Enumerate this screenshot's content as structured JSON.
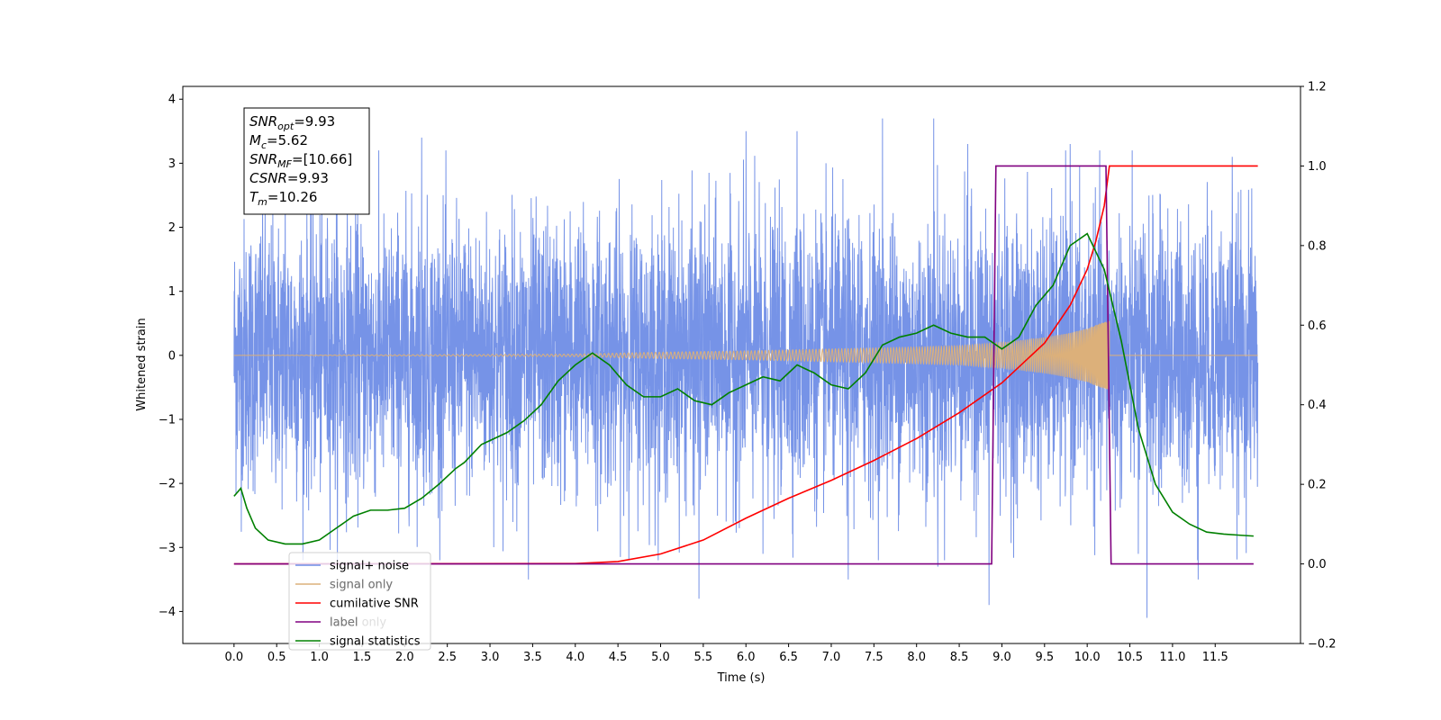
{
  "chart_data": {
    "type": "line",
    "xlabel": "Time (s)",
    "ylabel_left": "Whitened strain",
    "ylabel_right": "",
    "xlim": [
      -0.6,
      12.5
    ],
    "ylim_left": [
      -4.5,
      4.2
    ],
    "ylim_right": [
      -0.2,
      1.2
    ],
    "x_ticks": [
      "0.0",
      "0.5",
      "1.0",
      "1.5",
      "2.0",
      "2.5",
      "3.0",
      "3.5",
      "4.0",
      "4.5",
      "5.0",
      "5.5",
      "6.0",
      "6.5",
      "7.0",
      "7.5",
      "8.0",
      "8.5",
      "9.0",
      "9.5",
      "10.0",
      "10.5",
      "11.0",
      "11.5"
    ],
    "y_ticks_left": [
      "4",
      "3",
      "2",
      "1",
      "0",
      "−1",
      "−2",
      "−3",
      "−4"
    ],
    "y_ticks_right": [
      "1.2",
      "1.0",
      "0.8",
      "0.6",
      "0.4",
      "0.2",
      "0.0",
      "−0.2"
    ],
    "grid": false,
    "legend_position": "lower-left",
    "legend": [
      "signal+ noise",
      "signal only",
      "cumilative SNR",
      "label",
      "signal statistics"
    ],
    "overlapped_legend_text": [
      "signal only",
      "label only"
    ],
    "annotation_box": {
      "lines": [
        {
          "base": "SNR",
          "sub": "opt",
          "value": "=9.93"
        },
        {
          "base": "M",
          "sub": "c",
          "value": "=5.62"
        },
        {
          "base": "SNR",
          "sub": "MF",
          "value": "=[10.66]"
        },
        {
          "base": "CSNR",
          "sub": "",
          "value": "=9.93"
        },
        {
          "base": "T",
          "sub": "m",
          "value": "=10.26"
        }
      ]
    },
    "series": [
      {
        "name": "signal+ noise",
        "axis": "left",
        "color": "#6f8de6",
        "kind": "noise",
        "x_range": [
          0,
          12
        ],
        "amplitude_sigma": 1.05,
        "peaks": [
          [
            0.6,
            2.9
          ],
          [
            1.2,
            3.5
          ],
          [
            2.2,
            3.4
          ],
          [
            3.45,
            -3.5
          ],
          [
            5.45,
            3.5
          ],
          [
            5.45,
            -3.8
          ],
          [
            6.0,
            3.5
          ],
          [
            6.2,
            -3.1
          ],
          [
            6.6,
            3.5
          ],
          [
            7.2,
            -3.5
          ],
          [
            7.6,
            3.7
          ],
          [
            8.2,
            3.7
          ],
          [
            8.25,
            -3.3
          ],
          [
            8.6,
            3.3
          ],
          [
            8.85,
            -3.9
          ],
          [
            9.8,
            3.3
          ],
          [
            10.6,
            -3.1
          ],
          [
            10.7,
            -4.1
          ],
          [
            11.3,
            -3.5
          ],
          [
            11.7,
            3.1
          ]
        ]
      },
      {
        "name": "signal only",
        "axis": "left",
        "color": "#dcb07a",
        "kind": "chirp",
        "x_range": [
          0,
          10.26
        ],
        "envelope": [
          [
            0,
            0.0
          ],
          [
            4.0,
            0.02
          ],
          [
            5.0,
            0.05
          ],
          [
            6.0,
            0.07
          ],
          [
            7.0,
            0.1
          ],
          [
            8.0,
            0.13
          ],
          [
            8.5,
            0.15
          ],
          [
            9.0,
            0.2
          ],
          [
            9.5,
            0.28
          ],
          [
            9.8,
            0.35
          ],
          [
            10.0,
            0.42
          ],
          [
            10.15,
            0.5
          ],
          [
            10.26,
            0.55
          ]
        ]
      },
      {
        "name": "cumilative SNR",
        "axis": "right",
        "color": "#ff0000",
        "points": [
          [
            0,
            0.0
          ],
          [
            4.0,
            0.001
          ],
          [
            4.5,
            0.006
          ],
          [
            5.0,
            0.025
          ],
          [
            5.5,
            0.06
          ],
          [
            6.0,
            0.115
          ],
          [
            6.5,
            0.165
          ],
          [
            7.0,
            0.21
          ],
          [
            7.5,
            0.26
          ],
          [
            8.0,
            0.315
          ],
          [
            8.5,
            0.38
          ],
          [
            9.0,
            0.455
          ],
          [
            9.5,
            0.555
          ],
          [
            9.8,
            0.65
          ],
          [
            10.0,
            0.74
          ],
          [
            10.1,
            0.81
          ],
          [
            10.2,
            0.9
          ],
          [
            10.26,
            1.0
          ],
          [
            12.0,
            1.0
          ]
        ]
      },
      {
        "name": "label",
        "axis": "right",
        "color": "#800080",
        "points": [
          [
            0,
            0
          ],
          [
            8.88,
            0
          ],
          [
            8.93,
            1
          ],
          [
            10.22,
            1
          ],
          [
            10.28,
            0
          ],
          [
            11.95,
            0
          ]
        ]
      },
      {
        "name": "signal statistics",
        "axis": "right",
        "color": "#008000",
        "points": [
          [
            0,
            0.17
          ],
          [
            0.08,
            0.19
          ],
          [
            0.15,
            0.14
          ],
          [
            0.25,
            0.09
          ],
          [
            0.4,
            0.06
          ],
          [
            0.6,
            0.05
          ],
          [
            0.8,
            0.05
          ],
          [
            1.0,
            0.06
          ],
          [
            1.2,
            0.09
          ],
          [
            1.4,
            0.12
          ],
          [
            1.6,
            0.135
          ],
          [
            1.8,
            0.135
          ],
          [
            2.0,
            0.14
          ],
          [
            2.2,
            0.165
          ],
          [
            2.4,
            0.2
          ],
          [
            2.6,
            0.24
          ],
          [
            2.7,
            0.255
          ],
          [
            2.9,
            0.3
          ],
          [
            3.0,
            0.31
          ],
          [
            3.2,
            0.33
          ],
          [
            3.4,
            0.36
          ],
          [
            3.6,
            0.4
          ],
          [
            3.8,
            0.46
          ],
          [
            4.0,
            0.5
          ],
          [
            4.2,
            0.53
          ],
          [
            4.4,
            0.5
          ],
          [
            4.6,
            0.45
          ],
          [
            4.8,
            0.42
          ],
          [
            5.0,
            0.42
          ],
          [
            5.2,
            0.44
          ],
          [
            5.4,
            0.41
          ],
          [
            5.6,
            0.4
          ],
          [
            5.8,
            0.43
          ],
          [
            6.0,
            0.45
          ],
          [
            6.2,
            0.47
          ],
          [
            6.4,
            0.46
          ],
          [
            6.6,
            0.5
          ],
          [
            6.8,
            0.48
          ],
          [
            7.0,
            0.45
          ],
          [
            7.2,
            0.44
          ],
          [
            7.4,
            0.48
          ],
          [
            7.6,
            0.55
          ],
          [
            7.8,
            0.57
          ],
          [
            8.0,
            0.58
          ],
          [
            8.2,
            0.6
          ],
          [
            8.4,
            0.58
          ],
          [
            8.6,
            0.57
          ],
          [
            8.8,
            0.57
          ],
          [
            9.0,
            0.54
          ],
          [
            9.2,
            0.57
          ],
          [
            9.4,
            0.65
          ],
          [
            9.6,
            0.7
          ],
          [
            9.8,
            0.8
          ],
          [
            10.0,
            0.83
          ],
          [
            10.2,
            0.74
          ],
          [
            10.4,
            0.56
          ],
          [
            10.6,
            0.34
          ],
          [
            10.8,
            0.2
          ],
          [
            11.0,
            0.13
          ],
          [
            11.2,
            0.1
          ],
          [
            11.4,
            0.08
          ],
          [
            11.6,
            0.075
          ],
          [
            11.8,
            0.072
          ],
          [
            11.95,
            0.07
          ]
        ]
      }
    ]
  }
}
